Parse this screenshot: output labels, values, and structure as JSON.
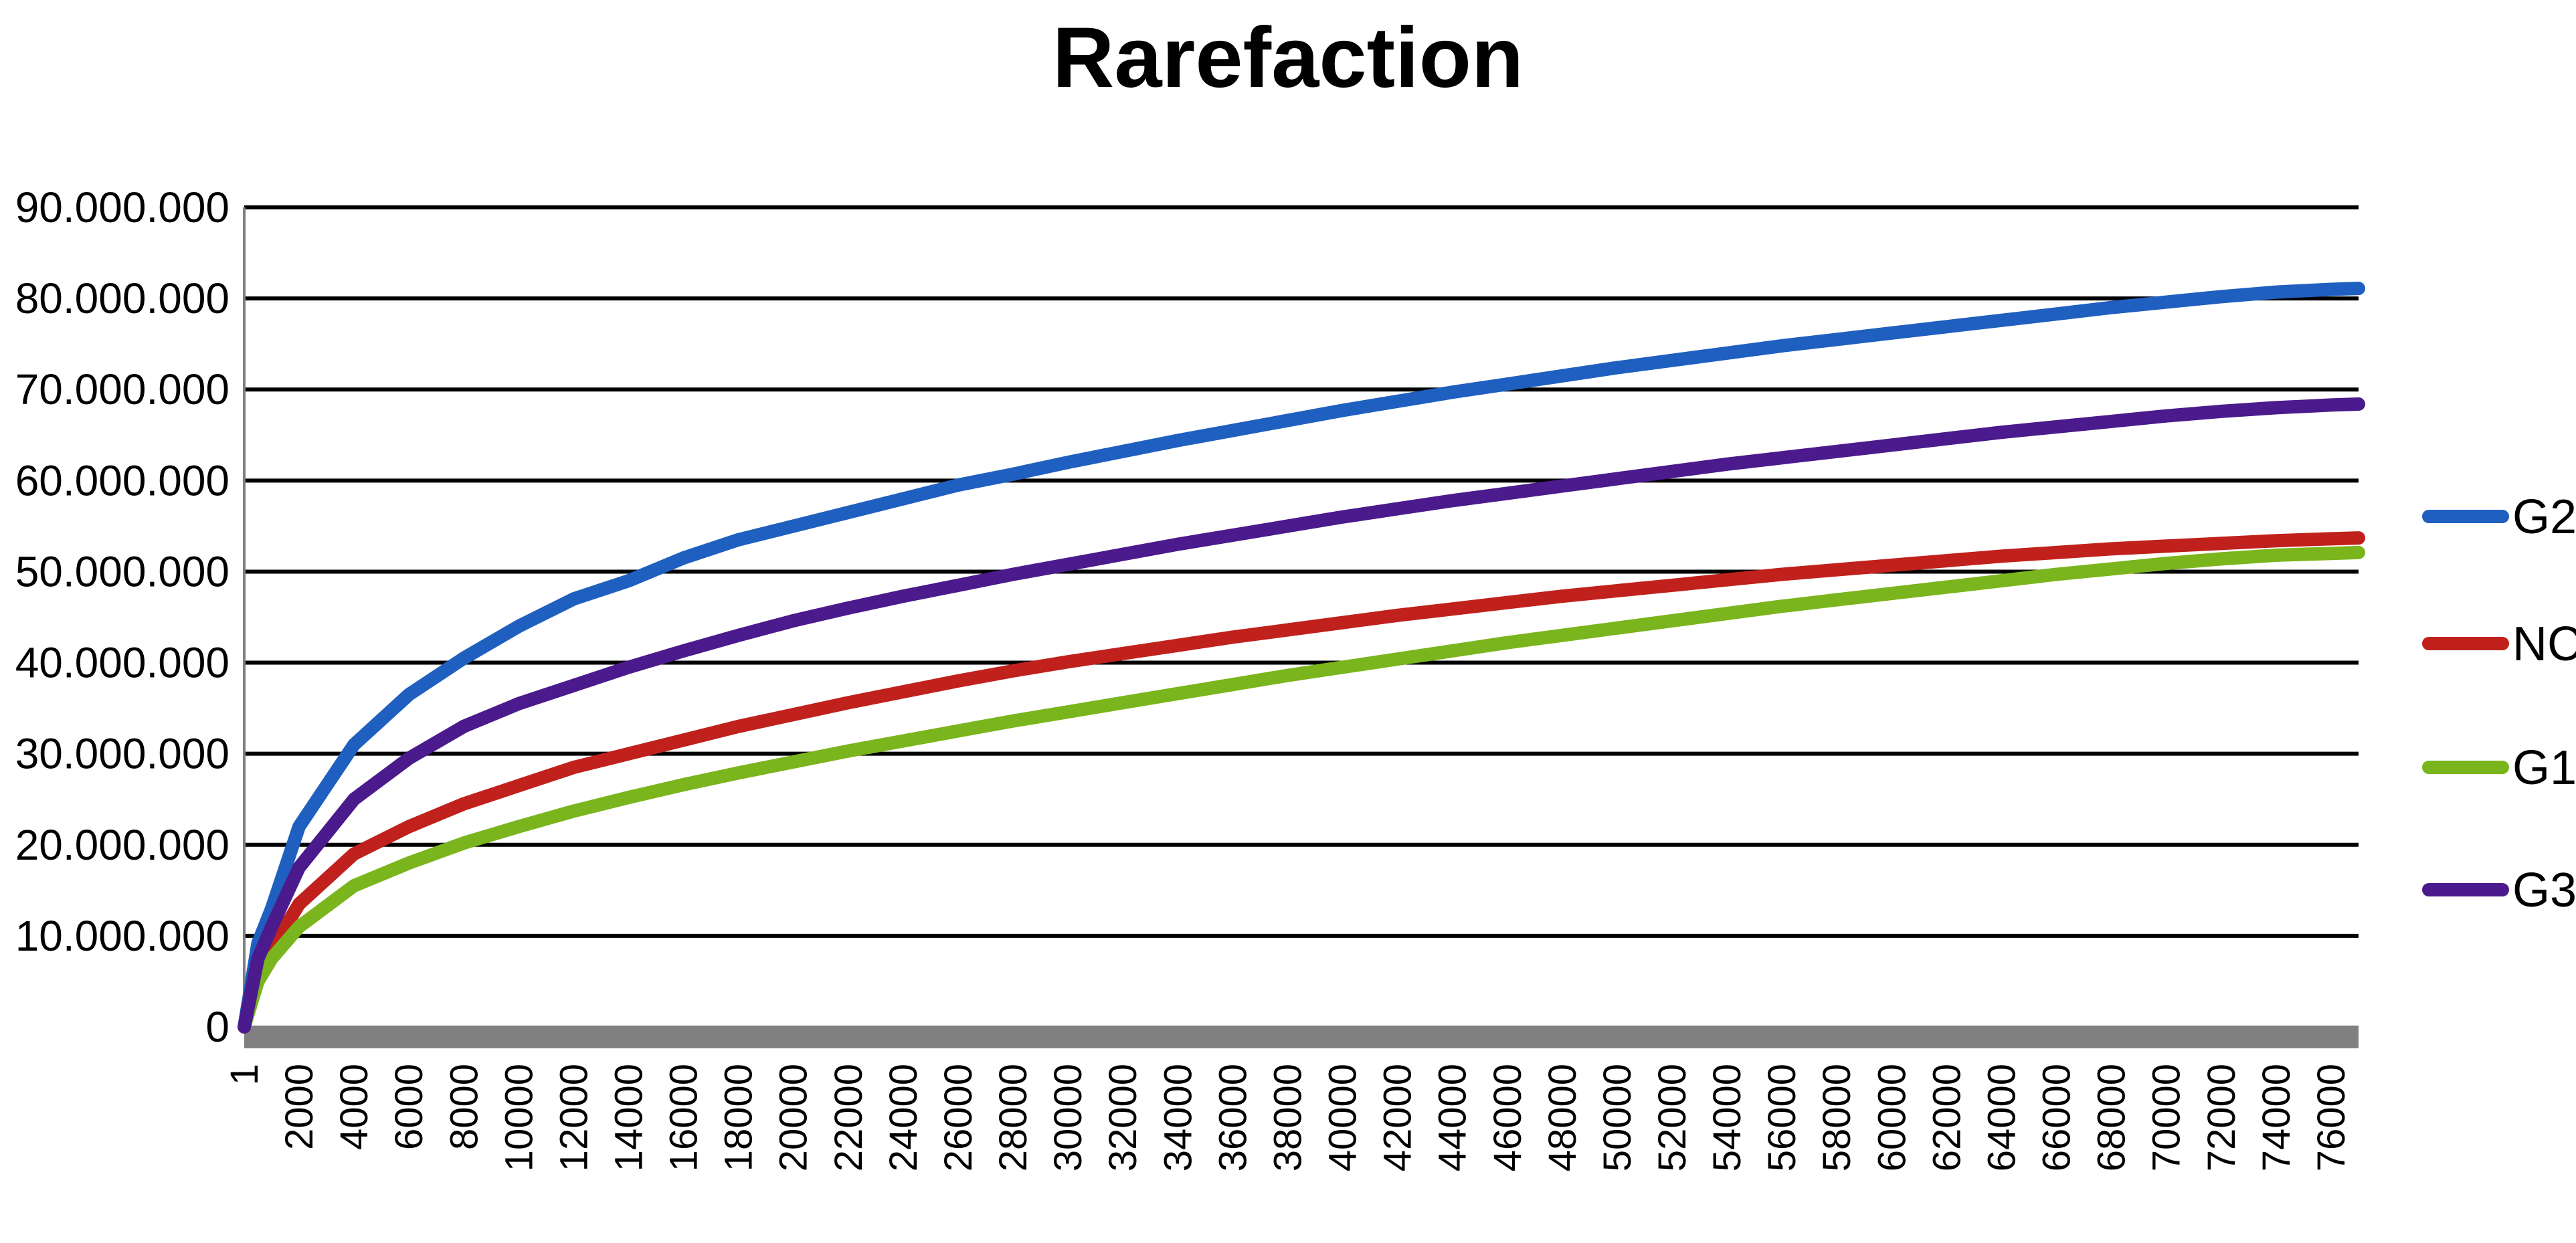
{
  "chart_data": {
    "type": "line",
    "title": "Rarefaction",
    "xlabel": "",
    "ylabel": "",
    "x_ticks": [
      "1",
      "2000",
      "4000",
      "6000",
      "8000",
      "10000",
      "12000",
      "14000",
      "16000",
      "18000",
      "20000",
      "22000",
      "24000",
      "26000",
      "28000",
      "30000",
      "32000",
      "34000",
      "36000",
      "38000",
      "40000",
      "42000",
      "44000",
      "46000",
      "48000",
      "50000",
      "52000",
      "54000",
      "56000",
      "58000",
      "60000",
      "62000",
      "64000",
      "66000",
      "68000",
      "70000",
      "72000",
      "74000",
      "76000"
    ],
    "x_range": [
      1,
      77000
    ],
    "y_ticks": [
      "0",
      "10.000.000",
      "20.000.000",
      "30.000.000",
      "40.000.000",
      "50.000.000",
      "60.000.000",
      "70.000.000",
      "80.000.000",
      "90.000.000"
    ],
    "ylim": [
      0,
      90000000
    ],
    "grid": true,
    "legend_position": "right",
    "x": [
      1,
      500,
      1000,
      2000,
      4000,
      6000,
      8000,
      10000,
      12000,
      14000,
      16000,
      18000,
      20000,
      22000,
      24000,
      26000,
      28000,
      30000,
      32000,
      34000,
      36000,
      38000,
      40000,
      42000,
      44000,
      46000,
      48000,
      50000,
      52000,
      54000,
      56000,
      58000,
      60000,
      62000,
      64000,
      66000,
      68000,
      70000,
      72000,
      74000,
      76000,
      77000
    ],
    "series": [
      {
        "name": "G2",
        "color": "#1f5fbf",
        "values": [
          0,
          9200000,
          13000000,
          22000000,
          31000000,
          36500000,
          40500000,
          44000000,
          47000000,
          49000000,
          51500000,
          53500000,
          55000000,
          56500000,
          58000000,
          59500000,
          60700000,
          62000000,
          63200000,
          64400000,
          65500000,
          66600000,
          67700000,
          68700000,
          69700000,
          70600000,
          71500000,
          72400000,
          73200000,
          74000000,
          74800000,
          75500000,
          76200000,
          76900000,
          77600000,
          78300000,
          79000000,
          79600000,
          80200000,
          80700000,
          81000000,
          81100000
        ]
      },
      {
        "name": "NC",
        "color": "#c0211c",
        "values": [
          0,
          6000000,
          8500000,
          13500000,
          19000000,
          22000000,
          24500000,
          26500000,
          28500000,
          30000000,
          31500000,
          33000000,
          34300000,
          35600000,
          36800000,
          38000000,
          39100000,
          40100000,
          41000000,
          41900000,
          42800000,
          43600000,
          44400000,
          45200000,
          45900000,
          46600000,
          47300000,
          47900000,
          48500000,
          49100000,
          49700000,
          50200000,
          50700000,
          51200000,
          51700000,
          52100000,
          52500000,
          52800000,
          53100000,
          53400000,
          53600000,
          53700000
        ]
      },
      {
        "name": "G1",
        "color": "#7ab51d",
        "values": [
          0,
          5000000,
          7500000,
          11000000,
          15500000,
          18000000,
          20200000,
          22000000,
          23700000,
          25200000,
          26600000,
          27900000,
          29100000,
          30300000,
          31400000,
          32500000,
          33600000,
          34600000,
          35600000,
          36600000,
          37600000,
          38600000,
          39500000,
          40400000,
          41300000,
          42200000,
          43000000,
          43800000,
          44600000,
          45400000,
          46200000,
          46900000,
          47600000,
          48300000,
          49000000,
          49700000,
          50300000,
          50900000,
          51400000,
          51800000,
          52000000,
          52100000
        ]
      },
      {
        "name": "G3",
        "color": "#4b1a8c",
        "values": [
          0,
          7500000,
          11000000,
          17500000,
          25000000,
          29500000,
          33000000,
          35500000,
          37500000,
          39500000,
          41300000,
          43000000,
          44600000,
          46000000,
          47300000,
          48500000,
          49700000,
          50800000,
          51900000,
          53000000,
          54000000,
          55000000,
          56000000,
          56900000,
          57800000,
          58600000,
          59400000,
          60200000,
          61000000,
          61800000,
          62500000,
          63200000,
          63900000,
          64600000,
          65300000,
          65900000,
          66500000,
          67100000,
          67600000,
          68000000,
          68300000,
          68400000
        ]
      }
    ]
  }
}
